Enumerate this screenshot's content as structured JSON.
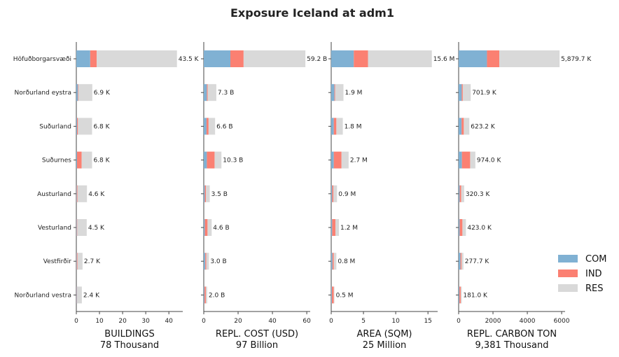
{
  "chart_data": {
    "type": "bar",
    "orientation": "horizontal",
    "stacked": true,
    "title": "Exposure Iceland at adm1",
    "categories": [
      "Höfuðborgarsvæði",
      "Norðurland eystra",
      "Suðurland",
      "Suðurnes",
      "Austurland",
      "Vesturland",
      "Vestfirðir",
      "Norðurland vestra"
    ],
    "colors": {
      "COM": "#80b1d3",
      "IND": "#fb8072",
      "RES": "#d9d9d9"
    },
    "legend": {
      "position": "right",
      "entries": [
        "COM",
        "IND",
        "RES"
      ]
    },
    "grid": false,
    "panels": [
      {
        "xlabel": "BUILDINGS",
        "total": "78 Thousand",
        "xlim": [
          0,
          46
        ],
        "xticks": [
          0,
          10,
          20,
          30,
          40
        ],
        "series": [
          {
            "name": "COM",
            "values": [
              6.0,
              0.7,
              0.3,
              0.3,
              0.2,
              0.2,
              0.2,
              0.2
            ]
          },
          {
            "name": "IND",
            "values": [
              2.8,
              0.2,
              0.4,
              2.0,
              0.3,
              0.2,
              0.3,
              0.1
            ]
          },
          {
            "name": "RES",
            "values": [
              34.7,
              6.0,
              6.1,
              4.5,
              4.1,
              4.1,
              2.2,
              2.1
            ]
          }
        ],
        "labels": [
          "43.5 K",
          "6.9 K",
          "6.8 K",
          "6.8 K",
          "4.6 K",
          "4.5 K",
          "2.7 K",
          "2.4 K"
        ]
      },
      {
        "xlabel": "REPL. COST (USD)",
        "total": "97 Billion",
        "xlim": [
          0,
          62
        ],
        "xticks": [
          0,
          20,
          40,
          60
        ],
        "series": [
          {
            "name": "COM",
            "values": [
              15.5,
              1.8,
              1.6,
              1.8,
              0.6,
              0.6,
              0.9,
              0.4
            ]
          },
          {
            "name": "IND",
            "values": [
              7.7,
              0.5,
              1.2,
              4.5,
              0.7,
              1.6,
              0.6,
              0.8
            ]
          },
          {
            "name": "RES",
            "values": [
              36.0,
              5.0,
              3.8,
              4.0,
              2.2,
              2.4,
              1.5,
              0.8
            ]
          }
        ],
        "labels": [
          "59.2 B",
          "7.3 B",
          "6.6 B",
          "10.3 B",
          "3.5 B",
          "4.6 B",
          "3.0 B",
          "2.0 B"
        ]
      },
      {
        "xlabel": "AREA (SQM)",
        "total": "25 Million",
        "xlim": [
          0,
          16.5
        ],
        "xticks": [
          0,
          5,
          10,
          15
        ],
        "series": [
          {
            "name": "COM",
            "values": [
              3.5,
              0.5,
              0.4,
              0.4,
              0.15,
              0.15,
              0.2,
              0.1
            ]
          },
          {
            "name": "IND",
            "values": [
              2.2,
              0.1,
              0.4,
              1.2,
              0.2,
              0.5,
              0.2,
              0.3
            ]
          },
          {
            "name": "RES",
            "values": [
              9.9,
              1.3,
              1.0,
              1.1,
              0.55,
              0.55,
              0.4,
              0.1
            ]
          }
        ],
        "labels": [
          "15.6 M",
          "1.9 M",
          "1.8 M",
          "2.7 M",
          "0.9 M",
          "1.2 M",
          "0.8 M",
          "0.5 M"
        ]
      },
      {
        "xlabel": "REPL. CARBON TON",
        "total": "9,381 Thousand",
        "xlim": [
          0,
          6200
        ],
        "xticks": [
          0,
          2000,
          4000,
          6000
        ],
        "series": [
          {
            "name": "COM",
            "values": [
              1650,
              180,
              170,
              190,
              60,
              60,
              110,
              40
            ]
          },
          {
            "name": "IND",
            "values": [
              720,
              60,
              130,
              480,
              90,
              160,
              60,
              80
            ]
          },
          {
            "name": "RES",
            "values": [
              3509.7,
              461.9,
              323.2,
              304.0,
              170.3,
              203.0,
              107.7,
              61.0
            ]
          }
        ],
        "labels": [
          "5,879.7 K",
          "701.9 K",
          "623.2 K",
          "974.0 K",
          "320.3 K",
          "423.0 K",
          "277.7 K",
          "181.0 K"
        ]
      }
    ]
  }
}
